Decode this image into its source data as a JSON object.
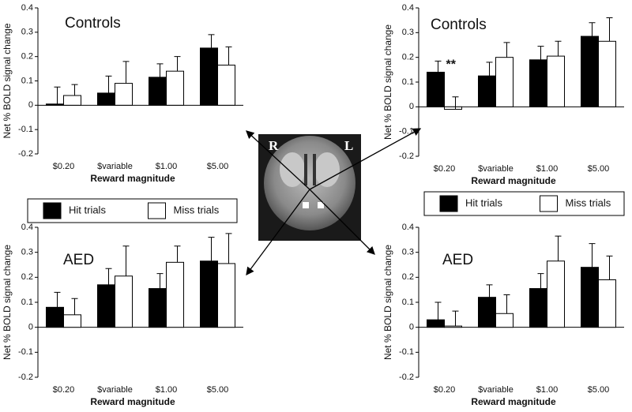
{
  "chart_data": [
    {
      "type": "bar",
      "title": "Controls",
      "x_label": "Reward magnitude",
      "y_label": "Net % BOLD signal change",
      "categories": [
        "$0.20",
        "$variable",
        "$1.00",
        "$5.00"
      ],
      "series": [
        {
          "name": "Hit trials",
          "color": "#000000",
          "values": [
            0.005,
            0.05,
            0.115,
            0.235
          ],
          "errors": [
            0.07,
            0.07,
            0.055,
            0.055
          ]
        },
        {
          "name": "Miss trials",
          "color": "#ffffff",
          "values": [
            0.04,
            0.09,
            0.14,
            0.165
          ],
          "errors": [
            0.045,
            0.09,
            0.06,
            0.075
          ]
        }
      ],
      "ylim": [
        -0.2,
        0.4
      ],
      "yticks": [
        -0.2,
        -0.1,
        0,
        0.1,
        0.2,
        0.3,
        0.4
      ],
      "legend": "below"
    },
    {
      "type": "bar",
      "title": "Controls",
      "x_label": "Reward magnitude",
      "y_label": "Net % BOLD signal change",
      "annotation": "**",
      "categories": [
        "$0.20",
        "$variable",
        "$1.00",
        "$5.00"
      ],
      "series": [
        {
          "name": "Hit trials",
          "color": "#000000",
          "values": [
            0.14,
            0.125,
            0.19,
            0.285
          ],
          "errors": [
            0.045,
            0.055,
            0.055,
            0.055
          ]
        },
        {
          "name": "Miss trials",
          "color": "#ffffff",
          "values": [
            -0.01,
            0.2,
            0.205,
            0.265
          ],
          "errors": [
            0.05,
            0.06,
            0.06,
            0.095
          ]
        }
      ],
      "ylim": [
        -0.2,
        0.4
      ],
      "yticks": [
        -0.2,
        -0.1,
        0,
        0.1,
        0.2,
        0.3,
        0.4
      ],
      "legend": "below"
    },
    {
      "type": "bar",
      "title": "AED",
      "x_label": "Reward magnitude",
      "y_label": "Net % BOLD signal change",
      "categories": [
        "$0.20",
        "$variable",
        "$1.00",
        "$5.00"
      ],
      "series": [
        {
          "name": "Hit trials",
          "color": "#000000",
          "values": [
            0.08,
            0.17,
            0.155,
            0.265
          ],
          "errors": [
            0.06,
            0.065,
            0.06,
            0.095
          ]
        },
        {
          "name": "Miss trials",
          "color": "#ffffff",
          "values": [
            0.05,
            0.205,
            0.26,
            0.255
          ],
          "errors": [
            0.065,
            0.12,
            0.065,
            0.12
          ]
        }
      ],
      "ylim": [
        -0.2,
        0.4
      ],
      "yticks": [
        -0.2,
        -0.1,
        0,
        0.1,
        0.2,
        0.3,
        0.4
      ]
    },
    {
      "type": "bar",
      "title": "AED",
      "x_label": "Reward magnitude",
      "y_label": "Net % BOLD signal change",
      "categories": [
        "$0.20",
        "$variable",
        "$1.00",
        "$5.00"
      ],
      "series": [
        {
          "name": "Hit trials",
          "color": "#000000",
          "values": [
            0.03,
            0.12,
            0.155,
            0.24
          ],
          "errors": [
            0.07,
            0.05,
            0.06,
            0.095
          ]
        },
        {
          "name": "Miss trials",
          "color": "#ffffff",
          "values": [
            0.005,
            0.055,
            0.265,
            0.19
          ],
          "errors": [
            0.06,
            0.075,
            0.1,
            0.095
          ]
        }
      ],
      "ylim": [
        -0.2,
        0.4
      ],
      "yticks": [
        -0.2,
        -0.1,
        0,
        0.1,
        0.2,
        0.3,
        0.4
      ]
    }
  ],
  "brain_image": {
    "left_label": "R",
    "right_label": "L"
  }
}
